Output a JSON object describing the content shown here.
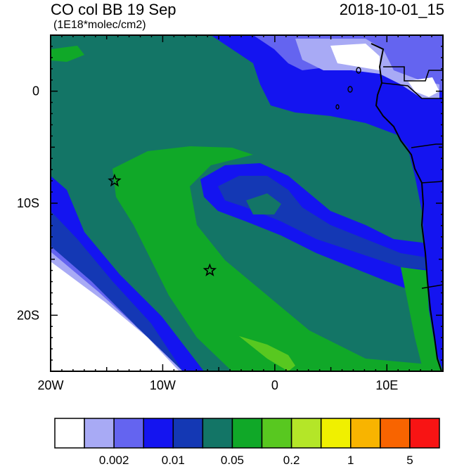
{
  "header": {
    "title": "CO col BB 19 Sep",
    "units": "(1E18*molec/cm2)",
    "datetime": "2018-10-01_15"
  },
  "axes": {
    "lon_ticks": [
      {
        "value": -20,
        "label": "20W"
      },
      {
        "value": -10,
        "label": "10W"
      },
      {
        "value": 0,
        "label": "0"
      },
      {
        "value": 10,
        "label": "10E"
      }
    ],
    "lat_ticks": [
      {
        "value": 0,
        "label": "0"
      },
      {
        "value": -10,
        "label": "10S"
      },
      {
        "value": -20,
        "label": "20S"
      }
    ],
    "lon_range": [
      -20,
      15
    ],
    "lat_range": [
      -25,
      5
    ]
  },
  "markers": [
    {
      "name": "station-marker-north",
      "lon": -14.3,
      "lat": -8.0
    },
    {
      "name": "station-marker-south",
      "lon": -5.8,
      "lat": -16.0
    }
  ],
  "colorbar": {
    "colors": [
      "#ffffff",
      "#a8aaf5",
      "#6464f0",
      "#1414f0",
      "#1438b4",
      "#137566",
      "#10a828",
      "#58c820",
      "#b4e628",
      "#f0f000",
      "#f8b400",
      "#f86400",
      "#f81414"
    ],
    "labels": [
      "0.002",
      "0.01",
      "0.05",
      "0.2",
      "1",
      "5"
    ]
  },
  "colors": {
    "ocean_dark": "#137566",
    "plume_green": "#10a828",
    "plume_light": "#58c820",
    "blue_low": "#1414f0",
    "blue_mid": "#1438b4",
    "blue_pale": "#6464f0",
    "blue_faint": "#a8aaf5"
  }
}
